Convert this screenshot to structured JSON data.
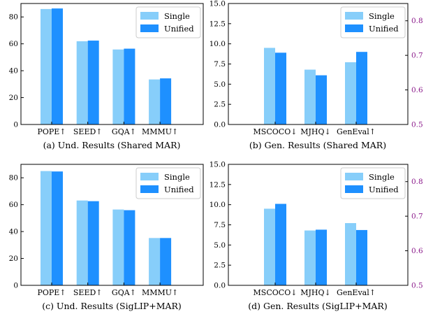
{
  "colors": {
    "single": "#87cefa",
    "unified": "#1e90ff",
    "secondary_axis": "#8b1a8b",
    "axis": "#000000"
  },
  "chart_data": [
    {
      "type": "bar",
      "caption": "(a) Und. Results (Shared MAR)",
      "categories": [
        "POPE↑",
        "SEED↑",
        "GQA↑",
        "MMMU↑"
      ],
      "category_colors": [
        "#000000",
        "#000000",
        "#000000",
        "#000000"
      ],
      "series": [
        {
          "name": "Single",
          "values": [
            85.9,
            61.9,
            55.8,
            33.5
          ]
        },
        {
          "name": "Unified",
          "values": [
            86.3,
            62.4,
            56.4,
            34.3
          ]
        }
      ],
      "ylim": [
        0,
        90
      ],
      "yticks": [
        "0",
        "20",
        "40",
        "60",
        "80"
      ],
      "legend": "top-right"
    },
    {
      "type": "bar",
      "caption": "(b) Gen. Results (Shared MAR)",
      "categories": [
        "MSCOCO↓",
        "MJHQ↓",
        "GenEval↑"
      ],
      "category_colors": [
        "#000000",
        "#000000",
        "#8b1a8b"
      ],
      "series": [
        {
          "name": "Single",
          "values": [
            9.5,
            6.8,
            0.68
          ]
        },
        {
          "name": "Unified",
          "values": [
            8.9,
            6.1,
            0.71
          ]
        }
      ],
      "ylim": [
        0,
        15
      ],
      "yticks": [
        "0.0",
        "2.5",
        "5.0",
        "7.5",
        "10.0",
        "12.5",
        "15.0"
      ],
      "secondary_axis": {
        "categories": [
          "GenEval↑"
        ],
        "ylim": [
          0.5,
          0.85
        ],
        "yticks": [
          "0.5",
          "0.6",
          "0.7",
          "0.8"
        ]
      },
      "legend": "top-right"
    },
    {
      "type": "bar",
      "caption": "(c) Und. Results (SigLIP+MAR)",
      "categories": [
        "POPE↑",
        "SEED↑",
        "GQA↑",
        "MMMU↑"
      ],
      "category_colors": [
        "#000000",
        "#000000",
        "#000000",
        "#000000"
      ],
      "series": [
        {
          "name": "Single",
          "values": [
            85.0,
            63.1,
            56.4,
            35.2
          ]
        },
        {
          "name": "Unified",
          "values": [
            84.7,
            62.6,
            55.9,
            35.2
          ]
        }
      ],
      "ylim": [
        0,
        90
      ],
      "yticks": [
        "0",
        "20",
        "40",
        "60",
        "80"
      ],
      "legend": "top-right"
    },
    {
      "type": "bar",
      "caption": "(d) Gen. Results (SigLIP+MAR)",
      "categories": [
        "MSCOCO↓",
        "MJHQ↓",
        "GenEval↑"
      ],
      "category_colors": [
        "#000000",
        "#000000",
        "#8b1a8b"
      ],
      "series": [
        {
          "name": "Single",
          "values": [
            9.5,
            6.8,
            0.68
          ]
        },
        {
          "name": "Unified",
          "values": [
            10.1,
            6.9,
            0.66
          ]
        }
      ],
      "ylim": [
        0,
        15
      ],
      "yticks": [
        "0.0",
        "2.5",
        "5.0",
        "7.5",
        "10.0",
        "12.5",
        "15.0"
      ],
      "secondary_axis": {
        "categories": [
          "GenEval↑"
        ],
        "ylim": [
          0.5,
          0.85
        ],
        "yticks": [
          "0.5",
          "0.6",
          "0.7",
          "0.8"
        ]
      },
      "legend": "top-right"
    }
  ]
}
